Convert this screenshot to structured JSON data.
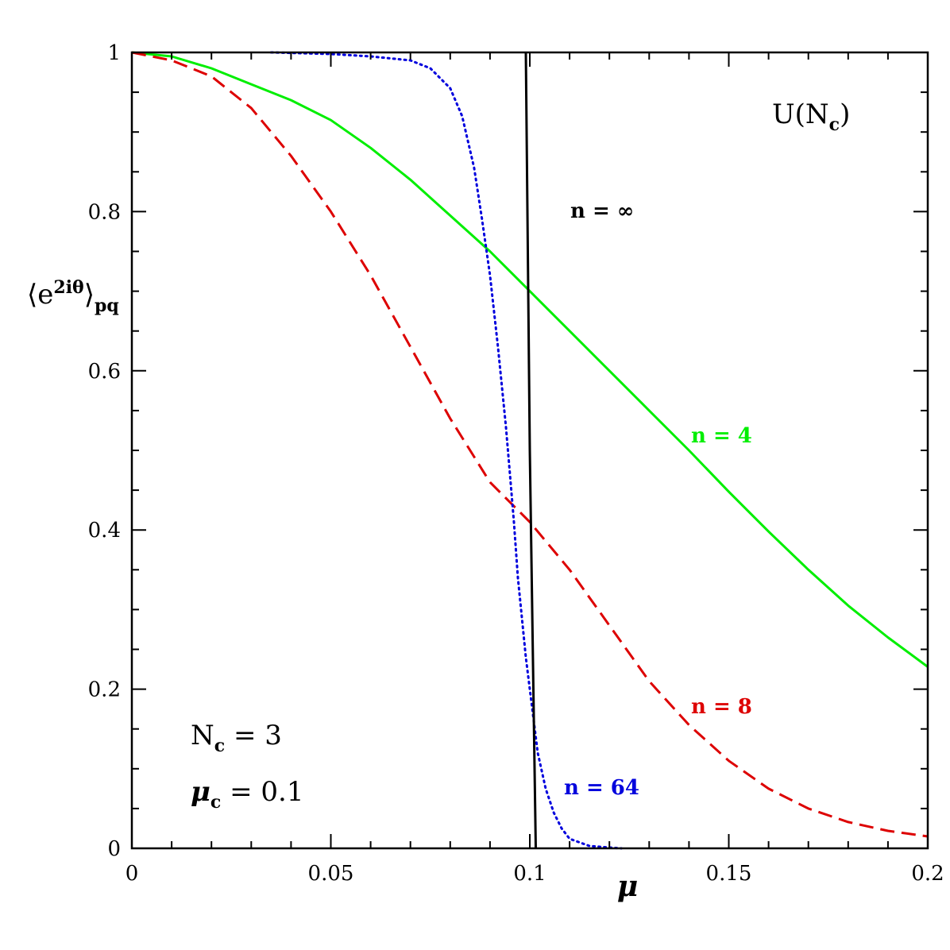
{
  "chart_data": {
    "type": "line",
    "xlabel": "μ",
    "ylabel": {
      "open": "⟨",
      "base": "e",
      "sup": "2iθ",
      "close": "⟩",
      "sub": "pq"
    },
    "xlim": [
      0,
      0.2
    ],
    "ylim": [
      0,
      1
    ],
    "x_ticks": [
      0,
      0.05,
      0.1,
      0.15,
      0.2
    ],
    "x_tick_labels": [
      "0",
      "0.05",
      "0.1",
      "0.15",
      "0.2"
    ],
    "y_ticks": [
      0,
      0.2,
      0.4,
      0.6,
      0.8,
      1
    ],
    "y_tick_labels": [
      "0",
      "0.2",
      "0.4",
      "0.6",
      "0.8",
      "1"
    ],
    "grid": false,
    "colors": {
      "n4": "#00ee00",
      "n8": "#dd0000",
      "n64": "#0000dd",
      "ninf": "#000000"
    },
    "series": [
      {
        "name": "n = 4",
        "color": "#00ee00",
        "style": "solid",
        "x": [
          0,
          0.01,
          0.02,
          0.03,
          0.04,
          0.05,
          0.06,
          0.07,
          0.08,
          0.09,
          0.1,
          0.11,
          0.12,
          0.13,
          0.14,
          0.15,
          0.16,
          0.17,
          0.18,
          0.19,
          0.2
        ],
        "y": [
          1,
          0.995,
          0.98,
          0.96,
          0.94,
          0.915,
          0.88,
          0.84,
          0.795,
          0.75,
          0.7,
          0.65,
          0.6,
          0.55,
          0.5,
          0.448,
          0.398,
          0.35,
          0.305,
          0.265,
          0.228
        ]
      },
      {
        "name": "n = 8",
        "color": "#dd0000",
        "style": "dashed",
        "x": [
          0,
          0.01,
          0.02,
          0.03,
          0.04,
          0.05,
          0.06,
          0.07,
          0.08,
          0.09,
          0.1,
          0.11,
          0.12,
          0.13,
          0.14,
          0.15,
          0.16,
          0.17,
          0.18,
          0.19,
          0.2
        ],
        "y": [
          1,
          0.99,
          0.97,
          0.93,
          0.87,
          0.8,
          0.72,
          0.63,
          0.54,
          0.46,
          0.41,
          0.35,
          0.28,
          0.21,
          0.155,
          0.11,
          0.075,
          0.05,
          0.033,
          0.022,
          0.015
        ]
      },
      {
        "name": "n = 64",
        "color": "#0000dd",
        "style": "dotted",
        "x": [
          0.035,
          0.05,
          0.06,
          0.07,
          0.075,
          0.08,
          0.083,
          0.086,
          0.088,
          0.09,
          0.092,
          0.094,
          0.095,
          0.096,
          0.097,
          0.098,
          0.099,
          0.1,
          0.101,
          0.102,
          0.104,
          0.106,
          0.108,
          0.11,
          0.115,
          0.12,
          0.123
        ],
        "y": [
          1,
          0.998,
          0.995,
          0.99,
          0.98,
          0.955,
          0.92,
          0.855,
          0.79,
          0.72,
          0.63,
          0.53,
          0.47,
          0.41,
          0.34,
          0.29,
          0.24,
          0.2,
          0.16,
          0.12,
          0.075,
          0.045,
          0.025,
          0.012,
          0.003,
          0.001,
          0
        ]
      },
      {
        "name": "n = ∞",
        "color": "#000000",
        "style": "solid",
        "x": [
          0.099,
          0.1,
          0.1015
        ],
        "y": [
          1,
          0.5,
          0
        ]
      }
    ],
    "annotations": {
      "group": {
        "text": "U(N",
        "sub": "c",
        "close": ")"
      },
      "ninf": "n = ∞",
      "n4": "n = 4",
      "n8": "n = 8",
      "n64": "n = 64",
      "nc": {
        "base": "N",
        "sub": "c",
        "rest": " = 3"
      },
      "muc": {
        "base": "μ",
        "sub": "c",
        "rest": " = 0.1"
      }
    }
  }
}
